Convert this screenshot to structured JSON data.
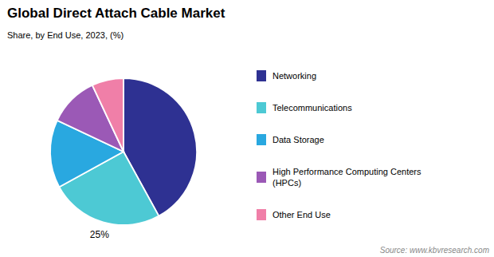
{
  "chart_data": {
    "type": "pie",
    "title": "Global Direct Attach Cable Market",
    "subtitle": "Share, by End Use, 2023, (%)",
    "source": "Source: www.kbvresearch.com",
    "categories": [
      "Networking",
      "Telecommunications",
      "Data Storage",
      "High Performance Computing Centers\n(HPCs)",
      "Other End Use"
    ],
    "values": [
      42,
      25,
      15,
      11,
      7
    ],
    "colors": [
      "#2e3192",
      "#4dc9d4",
      "#29a8e0",
      "#9b59b6",
      "#f07fa8"
    ],
    "data_labels": true,
    "value_labels": [
      null,
      "25%",
      null,
      null,
      null
    ],
    "legend": "right"
  }
}
